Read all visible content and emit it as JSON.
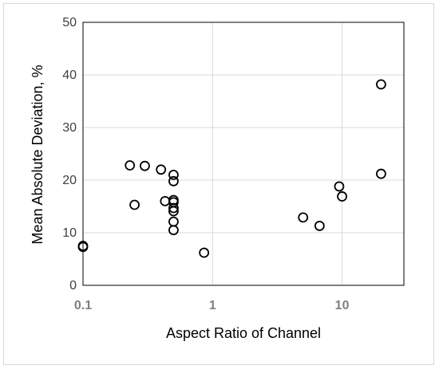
{
  "chart_data": {
    "type": "scatter",
    "title": "",
    "xlabel": "Aspect Ratio of Channel",
    "ylabel": "Mean Absolute Deviation, %",
    "x_scale": "log",
    "xlim": [
      0.1,
      30
    ],
    "ylim": [
      0,
      50
    ],
    "x_ticks": [
      0.1,
      1,
      10
    ],
    "x_tick_labels": [
      "0.1",
      "1",
      "10"
    ],
    "y_ticks": [
      0,
      10,
      20,
      30,
      40,
      50
    ],
    "y_tick_labels": [
      "0",
      "10",
      "20",
      "30",
      "40",
      "50"
    ],
    "grid": true,
    "legend": "none",
    "marker": "open-circle",
    "colors": {
      "marker": "#000000",
      "grid": "#d9d9d9",
      "axis": "#000000"
    },
    "series": [
      {
        "x": [
          0.1,
          0.1,
          0.23,
          0.25,
          0.3,
          0.4,
          0.43,
          0.5,
          0.5,
          0.5,
          0.5,
          0.5,
          0.5,
          0.5,
          0.5,
          0.86,
          5,
          6.7,
          9.5,
          10,
          20,
          20
        ],
        "y": [
          7.3,
          7.5,
          22.8,
          15.3,
          22.7,
          22.0,
          16.0,
          21.0,
          19.8,
          16.2,
          15.8,
          14.7,
          14.1,
          12.1,
          10.5,
          6.2,
          12.9,
          11.3,
          18.8,
          16.9,
          38.2,
          21.2
        ]
      }
    ]
  }
}
